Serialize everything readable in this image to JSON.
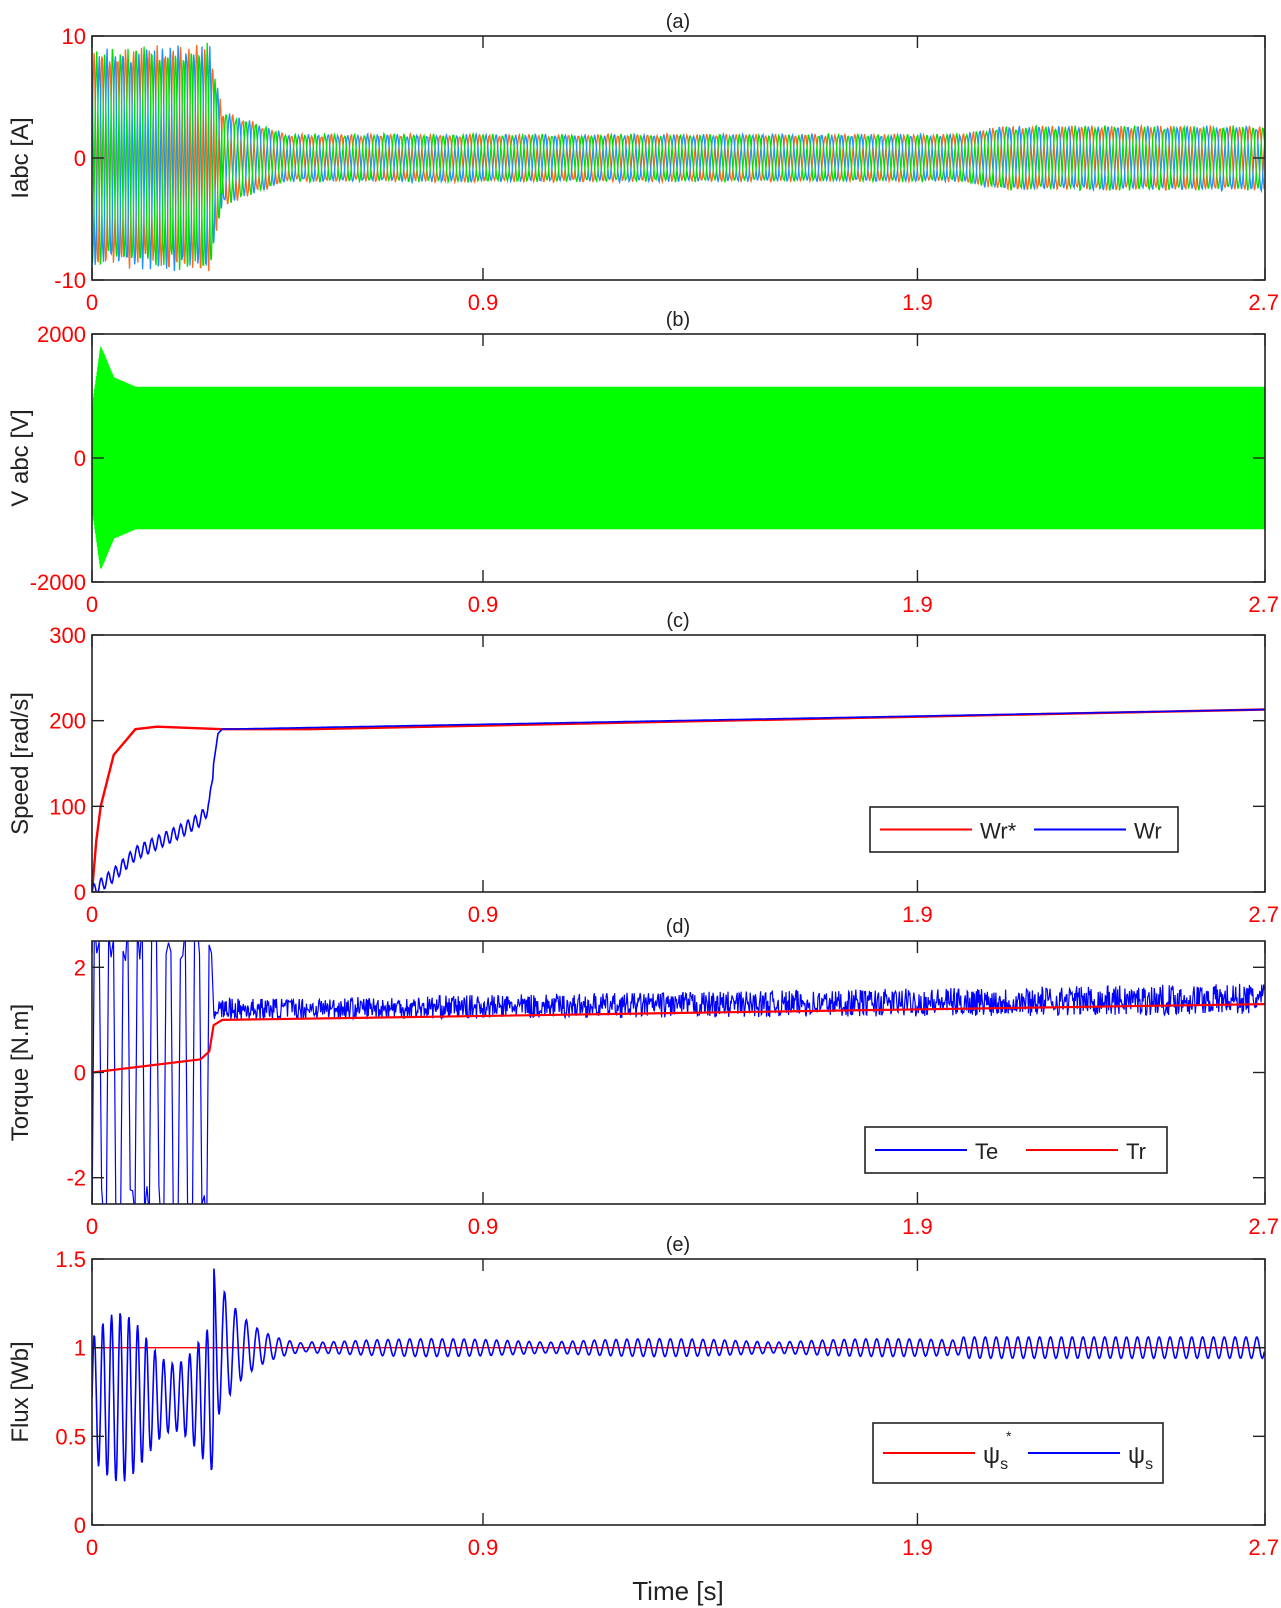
{
  "chart_data": [
    {
      "type": "line",
      "title": "(a)",
      "ylabel": "Iabc [A]",
      "xlabel": "",
      "xlim": [
        0,
        2.7
      ],
      "ylim": [
        -10,
        10
      ],
      "xticks": [
        "0",
        "0.9",
        "1.9",
        "2.7"
      ],
      "yticks": [
        "-10",
        "0",
        "10"
      ],
      "series": [
        {
          "color": "#ff6a1a",
          "phase": 0
        },
        {
          "color": "#1e90ff",
          "phase": 2.094
        },
        {
          "color": "#00e000",
          "phase": 4.189
        }
      ],
      "envelope_amplitude": [
        [
          0,
          9
        ],
        [
          0.27,
          9.5
        ],
        [
          0.3,
          4
        ],
        [
          0.45,
          2
        ],
        [
          0.9,
          2
        ],
        [
          2.0,
          2
        ],
        [
          2.1,
          2.7
        ],
        [
          2.7,
          2.7
        ]
      ]
    },
    {
      "type": "line",
      "title": "(b)",
      "ylabel": "V abc [V]",
      "xlabel": "",
      "xlim": [
        0,
        2.7
      ],
      "ylim": [
        -2000,
        2000
      ],
      "xticks": [
        "0",
        "0.9",
        "1.9",
        "2.7"
      ],
      "yticks": [
        "-2000",
        "0",
        "2000"
      ],
      "series": [
        {
          "color": "#00ff00"
        }
      ],
      "envelope_amplitude": [
        [
          0,
          800
        ],
        [
          0.02,
          1800
        ],
        [
          0.05,
          1300
        ],
        [
          0.1,
          1150
        ],
        [
          2.7,
          1150
        ]
      ]
    },
    {
      "type": "line",
      "title": "(c)",
      "ylabel": "Speed [rad/s]",
      "xlabel": "",
      "xlim": [
        0,
        2.7
      ],
      "ylim": [
        0,
        300
      ],
      "xticks": [
        "0",
        "0.9",
        "1.9",
        "2.7"
      ],
      "yticks": [
        "0",
        "100",
        "200",
        "300"
      ],
      "legend": "bottom-right",
      "series": [
        {
          "name": "Wr*",
          "color": "#ff0000",
          "x": [
            0,
            0.01,
            0.02,
            0.05,
            0.1,
            0.15,
            0.3,
            0.5,
            2.7
          ],
          "y": [
            0,
            60,
            100,
            160,
            190,
            193,
            190,
            190,
            213
          ]
        },
        {
          "name": "Wr",
          "color": "#0000ff",
          "x": [
            0,
            0.05,
            0.1,
            0.2,
            0.25,
            0.27,
            0.28,
            0.29,
            0.3,
            2.7
          ],
          "y": [
            0,
            20,
            45,
            70,
            85,
            100,
            150,
            185,
            190,
            213
          ]
        }
      ]
    },
    {
      "type": "line",
      "title": "(d)",
      "ylabel": "Torque [N.m]",
      "xlabel": "",
      "xlim": [
        0,
        2.7
      ],
      "ylim": [
        -2.5,
        2.5
      ],
      "xticks": [
        "0",
        "0.9",
        "1.9",
        "2.7"
      ],
      "yticks": [
        "-2",
        "0",
        "2"
      ],
      "legend": "bottom-right",
      "series": [
        {
          "name": "Te",
          "color": "#0000ff",
          "band_low": [
            [
              0.28,
              1.0
            ],
            [
              2.7,
              1.1
            ]
          ],
          "band_high": [
            [
              0.28,
              1.4
            ],
            [
              2.7,
              1.7
            ]
          ]
        },
        {
          "name": "Tr",
          "color": "#ff0000",
          "x": [
            0,
            0.25,
            0.27,
            0.28,
            0.3,
            2.7
          ],
          "y": [
            0,
            0.25,
            0.4,
            0.9,
            1.0,
            1.3
          ]
        }
      ]
    },
    {
      "type": "line",
      "title": "(e)",
      "ylabel": "Flux [Wb]",
      "xlabel": "Time [s]",
      "xlim": [
        0,
        2.7
      ],
      "ylim": [
        0,
        1.5
      ],
      "xticks": [
        "0",
        "0.9",
        "1.9",
        "2.7"
      ],
      "yticks": [
        "0",
        "0.5",
        "1",
        "1.5"
      ],
      "legend": "bottom-right",
      "series": [
        {
          "name": "ψs*",
          "label_main": "ψ",
          "label_sub": "s",
          "label_sup": "*",
          "color": "#ff0000",
          "x": [
            0,
            2.7
          ],
          "y": [
            1,
            1
          ]
        },
        {
          "name": "ψs",
          "label_main": "ψ",
          "label_sub": "s",
          "color": "#0000ff"
        }
      ]
    }
  ]
}
